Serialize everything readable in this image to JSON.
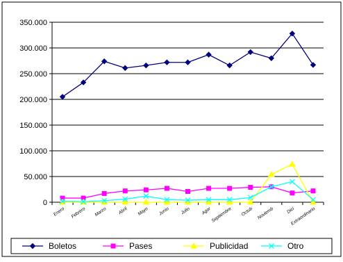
{
  "chart_data": {
    "type": "line",
    "title": "",
    "xlabel": "",
    "ylabel": "",
    "ylim": [
      0,
      350000
    ],
    "ytick_labels": [
      "0",
      "50.000",
      "100.000",
      "150.000",
      "200.000",
      "250.000",
      "300.000",
      "350.000"
    ],
    "ytick_values": [
      0,
      50000,
      100000,
      150000,
      200000,
      250000,
      300000,
      350000
    ],
    "grid": true,
    "legend_position": "bottom",
    "categories": [
      "Enero",
      "Febrero",
      "Marzo",
      "Abril",
      "Mayo",
      "Junio",
      "Julio",
      "Agor",
      "Septiembre",
      "Octub",
      "Noviemb",
      "Dici",
      "Extraordinario"
    ],
    "series": [
      {
        "name": "Boletos",
        "color": "#00007f",
        "marker": "diamond",
        "values": [
          205000,
          233000,
          274000,
          261000,
          266000,
          272000,
          272000,
          287000,
          266000,
          292000,
          280000,
          328000,
          267000
        ]
      },
      {
        "name": "Pases",
        "color": "#ff00ff",
        "marker": "square",
        "values": [
          8000,
          8000,
          17000,
          22000,
          24000,
          27000,
          21000,
          27000,
          27000,
          29000,
          30000,
          18000,
          22000
        ]
      },
      {
        "name": "Publicidad",
        "color": "#ffff00",
        "marker": "triangle",
        "values": [
          0,
          0,
          0,
          0,
          0,
          0,
          0,
          0,
          0,
          0,
          54000,
          74000,
          0
        ]
      },
      {
        "name": "Otro",
        "color": "#00ffff",
        "marker": "x",
        "values": [
          2000,
          1000,
          3000,
          6000,
          12000,
          5000,
          4000,
          5000,
          5000,
          9000,
          30000,
          40000,
          5000
        ]
      }
    ]
  }
}
